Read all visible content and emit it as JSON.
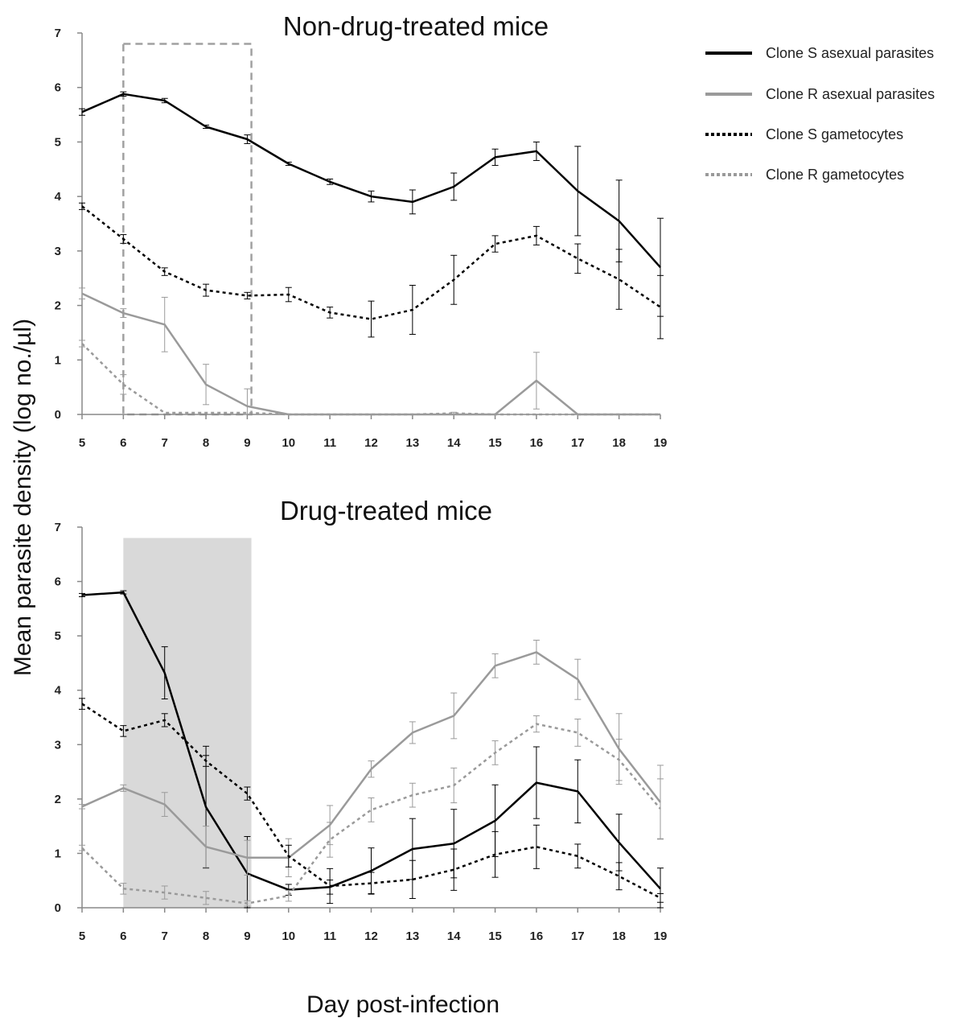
{
  "figure": {
    "ylabel": "Mean parasite density (log no./µl)",
    "xlabel": "Day post-infection"
  },
  "legend": {
    "placement": "top-right",
    "entries": [
      {
        "label": "Clone S asexual parasites",
        "color": "#000000",
        "dash": "solid"
      },
      {
        "label": "Clone R asexual parasites",
        "color": "#9a9a9a",
        "dash": "solid"
      },
      {
        "label": "Clone S gametocytes",
        "color": "#000000",
        "dash": "dotted"
      },
      {
        "label": "Clone R gametocytes",
        "color": "#9a9a9a",
        "dash": "dotted"
      }
    ]
  },
  "chart_data": [
    {
      "type": "line",
      "title": "Non-drug-treated mice",
      "xlabel": "Day post-infection",
      "ylabel": "Mean parasite density (log no./µl)",
      "x": [
        5,
        6,
        7,
        8,
        9,
        10,
        11,
        12,
        13,
        14,
        15,
        16,
        17,
        18,
        19
      ],
      "xlim": [
        5,
        19
      ],
      "ylim": [
        0,
        7
      ],
      "yticks": [
        0,
        1,
        2,
        3,
        4,
        5,
        6,
        7
      ],
      "grid": false,
      "highlight": {
        "kind": "dashed-box",
        "x": [
          6,
          9.1
        ],
        "y": [
          0,
          6.8
        ],
        "color": "#a0a0a0"
      },
      "series": [
        {
          "name": "Clone S asexual parasites",
          "color": "#000000",
          "dash": "solid",
          "values": [
            5.55,
            5.88,
            5.76,
            5.28,
            5.05,
            4.6,
            4.27,
            4.0,
            3.9,
            4.18,
            4.72,
            4.83,
            4.1,
            3.55,
            2.7
          ],
          "errors": [
            0.06,
            0.04,
            0.04,
            0.03,
            0.08,
            0.03,
            0.05,
            0.1,
            0.22,
            0.25,
            0.15,
            0.17,
            0.82,
            0.75,
            0.9
          ]
        },
        {
          "name": "Clone R asexual parasites",
          "color": "#9a9a9a",
          "dash": "solid",
          "values": [
            2.22,
            1.86,
            1.65,
            0.55,
            0.15,
            0.0,
            0.0,
            0.0,
            0.0,
            0.0,
            0.0,
            0.62,
            0.0,
            0.0,
            0.0
          ],
          "errors": [
            0.1,
            0.08,
            0.5,
            0.37,
            0.32,
            0,
            0,
            0,
            0,
            0,
            0,
            0.52,
            0,
            0,
            0
          ]
        },
        {
          "name": "Clone S gametocytes",
          "color": "#000000",
          "dash": "dotted",
          "values": [
            3.82,
            3.22,
            2.62,
            2.28,
            2.18,
            2.2,
            1.87,
            1.75,
            1.92,
            2.47,
            3.13,
            3.28,
            2.86,
            2.48,
            1.97
          ],
          "errors": [
            0.06,
            0.08,
            0.07,
            0.11,
            0.06,
            0.13,
            0.1,
            0.33,
            0.45,
            0.45,
            0.15,
            0.17,
            0.27,
            0.55,
            0.58
          ]
        },
        {
          "name": "Clone R gametocytes",
          "color": "#9a9a9a",
          "dash": "dotted",
          "values": [
            1.3,
            0.55,
            0.03,
            0.03,
            0.03,
            0.0,
            0.0,
            0.0,
            0.0,
            0.02,
            0.0,
            0.0,
            0.0,
            0.0,
            0.0
          ],
          "errors": [
            0.06,
            0.18,
            0,
            0,
            0,
            0,
            0,
            0,
            0,
            0.02,
            0,
            0,
            0,
            0,
            0
          ]
        }
      ]
    },
    {
      "type": "line",
      "title": "Drug-treated mice",
      "xlabel": "Day post-infection",
      "ylabel": "Mean parasite density (log no./µl)",
      "x": [
        5,
        6,
        7,
        8,
        9,
        10,
        11,
        12,
        13,
        14,
        15,
        16,
        17,
        18,
        19
      ],
      "xlim": [
        5,
        19
      ],
      "ylim": [
        0,
        7
      ],
      "yticks": [
        0,
        1,
        2,
        3,
        4,
        5,
        6,
        7
      ],
      "grid": false,
      "highlight": {
        "kind": "shaded-box",
        "x": [
          6,
          9.1
        ],
        "y": [
          0,
          6.8
        ],
        "color": "#d9d9d9"
      },
      "series": [
        {
          "name": "Clone S asexual parasites",
          "color": "#000000",
          "dash": "solid",
          "values": [
            5.75,
            5.8,
            4.32,
            1.85,
            0.63,
            0.33,
            0.38,
            0.68,
            1.08,
            1.18,
            1.6,
            2.3,
            2.14,
            1.2,
            0.35
          ],
          "errors": [
            0.03,
            0.03,
            0.48,
            1.12,
            0.68,
            0.1,
            0.13,
            0.42,
            0.56,
            0.63,
            0.66,
            0.66,
            0.58,
            0.52,
            0.38
          ]
        },
        {
          "name": "Clone R asexual parasites",
          "color": "#9a9a9a",
          "dash": "solid",
          "values": [
            1.86,
            2.2,
            1.9,
            1.12,
            0.92,
            0.92,
            1.52,
            2.55,
            3.22,
            3.53,
            4.45,
            4.7,
            4.2,
            2.92,
            1.94
          ],
          "errors": [
            0.04,
            0.06,
            0.22,
            0.38,
            0.32,
            0.35,
            0.36,
            0.15,
            0.2,
            0.42,
            0.22,
            0.22,
            0.37,
            0.65,
            0.68
          ]
        },
        {
          "name": "Clone S gametocytes",
          "color": "#000000",
          "dash": "dotted",
          "values": [
            3.75,
            3.25,
            3.45,
            2.7,
            2.1,
            0.95,
            0.4,
            0.45,
            0.52,
            0.7,
            0.98,
            1.12,
            0.95,
            0.58,
            0.18
          ],
          "errors": [
            0.1,
            0.1,
            0.12,
            0.1,
            0.12,
            0.2,
            0.32,
            0.2,
            0.35,
            0.38,
            0.42,
            0.4,
            0.22,
            0.25,
            0.08
          ]
        },
        {
          "name": "Clone R gametocytes",
          "color": "#9a9a9a",
          "dash": "dotted",
          "values": [
            1.1,
            0.35,
            0.28,
            0.18,
            0.08,
            0.22,
            1.25,
            1.8,
            2.07,
            2.25,
            2.85,
            3.38,
            3.22,
            2.72,
            1.82
          ],
          "errors": [
            0.05,
            0.1,
            0.12,
            0.12,
            0.05,
            0.1,
            0.32,
            0.22,
            0.22,
            0.32,
            0.22,
            0.15,
            0.25,
            0.38,
            0.55
          ]
        }
      ]
    }
  ]
}
